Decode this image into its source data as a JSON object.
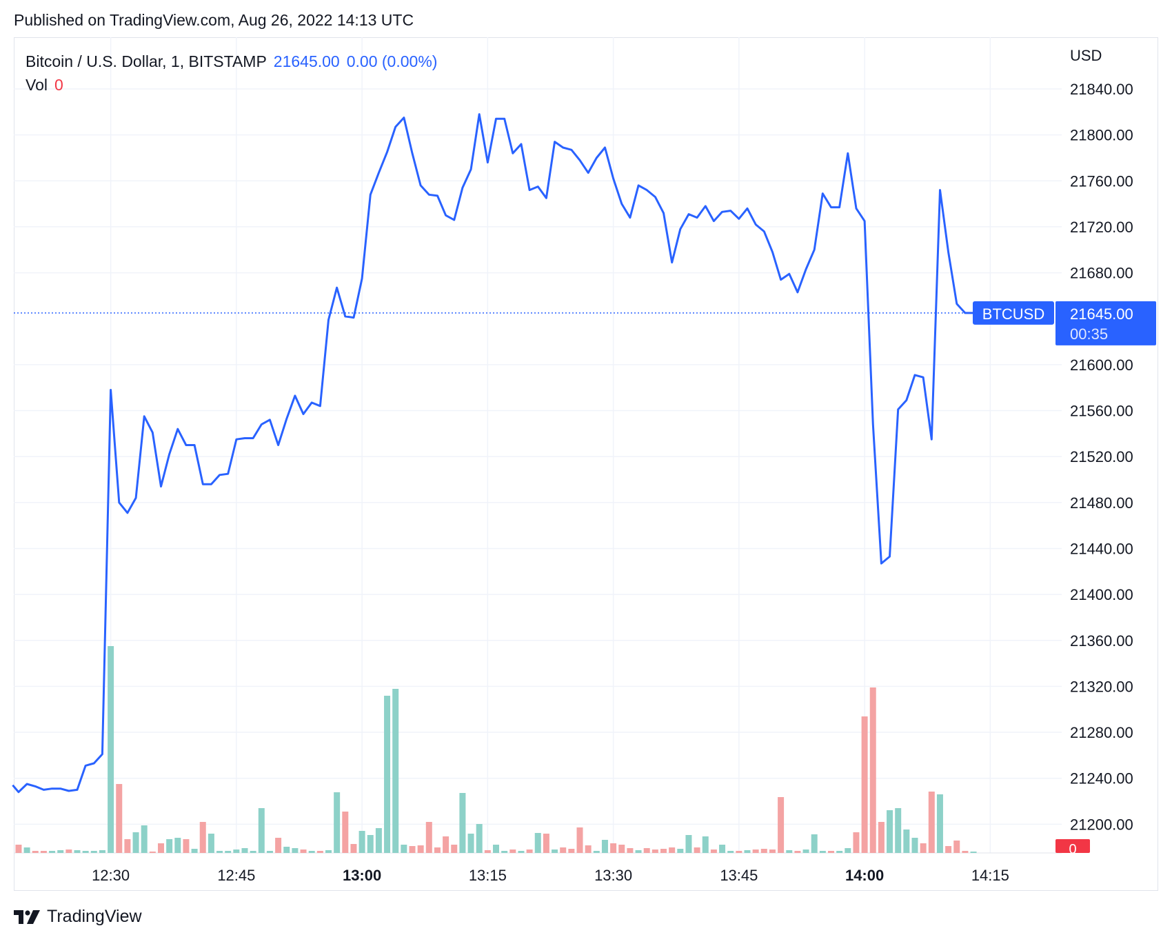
{
  "header": {
    "published": "Published on TradingView.com, Aug 26, 2022 14:13 UTC"
  },
  "legend": {
    "symbol": "Bitcoin / U.S. Dollar, 1, BITSTAMP",
    "price": "21645.00",
    "change": "0.00 (0.00%)",
    "vol_label": "Vol",
    "vol_value": "0"
  },
  "axis": {
    "currency": "USD",
    "price_tag": {
      "symbol": "BTCUSD",
      "price": "21645.00",
      "countdown": "00:35"
    },
    "volume_tag": "0"
  },
  "footer": {
    "brand": "TradingView"
  },
  "colors": {
    "line": "#2962ff",
    "volume_up": "#8dd1c8",
    "volume_down": "#f4a3a3",
    "grid": "#f0f3fa",
    "axis_text": "#131722",
    "tag_bg": "#2962ff",
    "volume_tag_bg": "#f23645"
  },
  "chart_data": {
    "type": "line",
    "symbol": "BTCUSD",
    "timeframe": "1",
    "ylim": [
      21175,
      21885
    ],
    "y_ticks": [
      21200,
      21240,
      21280,
      21320,
      21360,
      21400,
      21440,
      21480,
      21520,
      21560,
      21600,
      21680,
      21720,
      21760,
      21800,
      21840
    ],
    "y_tick_labels": [
      "21200.00",
      "21240.00",
      "21280.00",
      "21320.00",
      "21360.00",
      "21400.00",
      "21440.00",
      "21480.00",
      "21520.00",
      "21560.00",
      "21600.00",
      "21680.00",
      "21720.00",
      "21760.00",
      "21800.00",
      "21840.00"
    ],
    "x_ticks": [
      {
        "label": "12:30",
        "minute": 30,
        "bold": false
      },
      {
        "label": "12:45",
        "minute": 45,
        "bold": false
      },
      {
        "label": "13:00",
        "minute": 60,
        "bold": true
      },
      {
        "label": "13:15",
        "minute": 75,
        "bold": false
      },
      {
        "label": "13:30",
        "minute": 90,
        "bold": false
      },
      {
        "label": "13:45",
        "minute": 105,
        "bold": false
      },
      {
        "label": "14:00",
        "minute": 120,
        "bold": true
      },
      {
        "label": "14:15",
        "minute": 135,
        "bold": false
      }
    ],
    "x_minutes": [
      18.3,
      19,
      20,
      21,
      22,
      23,
      24,
      25,
      26,
      27,
      28,
      29,
      30,
      31,
      32,
      33,
      34,
      35,
      36,
      37,
      38,
      39,
      40,
      41,
      42,
      43,
      44,
      45,
      46,
      47,
      48,
      49,
      50,
      51,
      52,
      53,
      54,
      55,
      56,
      57,
      58,
      59,
      60,
      61,
      62,
      63,
      64,
      65,
      66,
      67,
      68,
      69,
      70,
      71,
      72,
      73,
      74,
      75,
      76,
      77,
      78,
      79,
      80,
      81,
      82,
      83,
      84,
      85,
      86,
      87,
      88,
      89,
      90,
      91,
      92,
      93,
      94,
      95,
      96,
      97,
      98,
      99,
      100,
      101,
      102,
      103,
      104,
      105,
      106,
      107,
      108,
      109,
      110,
      111,
      112,
      113,
      114,
      115,
      116,
      117,
      118,
      119,
      120,
      121,
      122,
      123,
      124,
      125,
      126,
      127,
      128,
      129,
      130,
      131,
      132,
      133
    ],
    "price": [
      21234,
      21228,
      21235,
      21233,
      21230,
      21231,
      21231,
      21229,
      21230,
      21251,
      21253,
      21261,
      21578,
      21480,
      21471,
      21484,
      21555,
      21541,
      21494,
      21522,
      21544,
      21530,
      21530,
      21496,
      21496,
      21504,
      21505,
      21535,
      21536,
      21536,
      21548,
      21552,
      21530,
      21553,
      21573,
      21557,
      21567,
      21564,
      21639,
      21667,
      21642,
      21641,
      21675,
      21748,
      21767,
      21785,
      21807,
      21815,
      21784,
      21756,
      21748,
      21747,
      21730,
      21726,
      21754,
      21770,
      21818,
      21776,
      21814,
      21814,
      21784,
      21792,
      21752,
      21755,
      21745,
      21794,
      21789,
      21787,
      21778,
      21767,
      21780,
      21789,
      21762,
      21740,
      21728,
      21756,
      21752,
      21746,
      21732,
      21689,
      21718,
      21731,
      21728,
      21738,
      21725,
      21733,
      21734,
      21727,
      21736,
      21722,
      21716,
      21698,
      21674,
      21679,
      21663,
      21683,
      21700,
      21749,
      21737,
      21737,
      21784,
      21736,
      21725,
      21548,
      21427,
      21433,
      21561,
      21569,
      21591,
      21589,
      21535,
      21752,
      21698,
      21653,
      21645,
      21645
    ]
  }
}
